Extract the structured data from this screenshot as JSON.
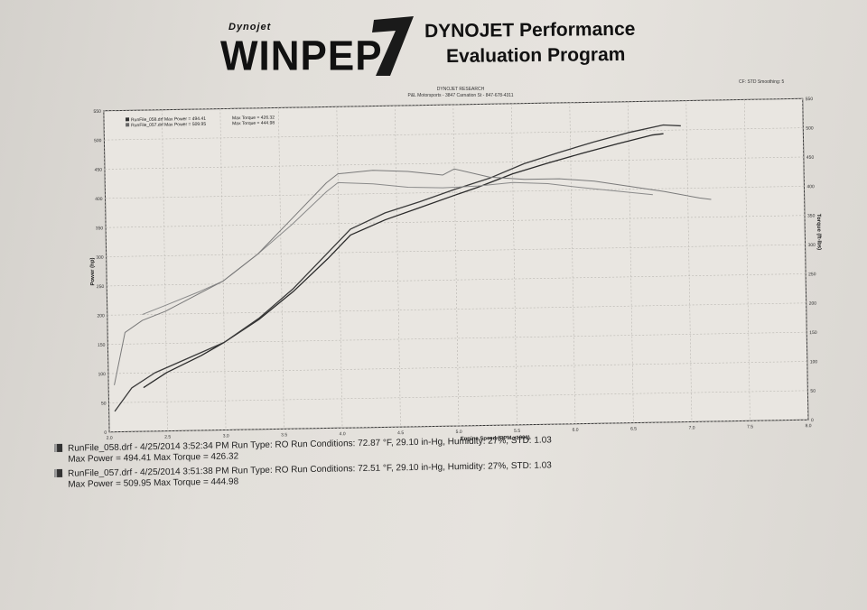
{
  "header": {
    "logo_top": "Dynojet",
    "logo_word": "WINPEP",
    "logo_number": "7",
    "title_line1": "DYNOJET Performance",
    "title_line2": "Evaluation Program",
    "cf_text": "CF: STD  Smoothing: 5",
    "research_line": "DYNOJET RESEARCH",
    "shop_line": "P&L Motorsports - 3847 Carnation St - 847-678-4311"
  },
  "inset_legend": {
    "row1": "RunFile_058.drf Max Power = 494.41",
    "row1_torque": "Max Torque = 426.32",
    "row2": "RunFile_057.drf Max Power = 509.95",
    "row2_torque": "Max Torque = 444.98"
  },
  "runs": [
    {
      "line1": "RunFile_058.drf - 4/25/2014 3:52:34 PM  Run Type: RO  Run Conditions: 72.87 °F, 29.10 in-Hg,  Humidity:  27%, STD: 1.03",
      "line2": "Max Power = 494.41  Max Torque = 426.32"
    },
    {
      "line1": "RunFile_057.drf - 4/25/2014 3:51:38 PM  Run Type: RO  Run Conditions: 72.51 °F, 29.10 in-Hg,  Humidity:  27%, STD: 1.03",
      "line2": "Max Power = 509.95  Max Torque = 444.98"
    }
  ],
  "chart_data": {
    "type": "line",
    "xlabel": "Engine Speed (RPM x1000)",
    "ylabel_left": "Power (hp)",
    "ylabel_right": "Torque (ft-lbs)",
    "xlim": [
      2.0,
      8.0
    ],
    "ylim_left": [
      0,
      550
    ],
    "ylim_right": [
      0,
      550
    ],
    "x_ticks": [
      "2.0",
      "2.5",
      "3.0",
      "3.5",
      "4.0",
      "4.5",
      "5.0",
      "5.5",
      "6.0",
      "6.5",
      "7.0",
      "7.5",
      "8.0"
    ],
    "y_ticks_left": [
      "0",
      "50",
      "100",
      "150",
      "200",
      "250",
      "300",
      "350",
      "400",
      "450",
      "500",
      "550"
    ],
    "y_ticks_right": [
      "0",
      "50",
      "100",
      "150",
      "200",
      "250",
      "300",
      "350",
      "400",
      "450",
      "500",
      "550"
    ],
    "grid": true,
    "series": [
      {
        "name": "RunFile_058.drf",
        "measure": "power",
        "color": "#2a2a2a",
        "x": [
          2.3,
          2.5,
          2.8,
          3.0,
          3.3,
          3.6,
          3.9,
          4.1,
          4.4,
          4.7,
          5.0,
          5.2,
          5.5,
          5.8,
          6.1,
          6.4,
          6.7,
          6.8
        ],
        "y": [
          75,
          100,
          128,
          150,
          188,
          235,
          290,
          330,
          355,
          375,
          395,
          408,
          430,
          447,
          463,
          478,
          492,
          494
        ]
      },
      {
        "name": "RunFile_057.drf",
        "measure": "power",
        "color": "#3a3a3a",
        "x": [
          2.05,
          2.2,
          2.4,
          2.7,
          3.0,
          3.3,
          3.6,
          3.9,
          4.1,
          4.4,
          4.7,
          5.0,
          5.3,
          5.6,
          5.9,
          6.2,
          6.5,
          6.8,
          6.95
        ],
        "y": [
          35,
          75,
          100,
          125,
          150,
          190,
          240,
          300,
          340,
          367,
          385,
          405,
          423,
          447,
          465,
          482,
          497,
          509,
          507
        ]
      },
      {
        "name": "RunFile_058.drf",
        "measure": "torque",
        "color": "#8a8a8a",
        "x": [
          2.3,
          2.5,
          2.8,
          3.0,
          3.3,
          3.6,
          3.9,
          4.0,
          4.3,
          4.6,
          4.9,
          5.2,
          5.5,
          5.8,
          6.1,
          6.4,
          6.7
        ],
        "y": [
          200,
          215,
          238,
          255,
          300,
          350,
          405,
          420,
          417,
          410,
          408,
          410,
          415,
          412,
          404,
          397,
          390
        ]
      },
      {
        "name": "RunFile_057.drf",
        "measure": "torque",
        "color": "#7a7a7a",
        "x": [
          2.05,
          2.15,
          2.3,
          2.5,
          2.8,
          3.0,
          3.3,
          3.6,
          3.9,
          4.0,
          4.3,
          4.6,
          4.9,
          5.0,
          5.3,
          5.6,
          5.9,
          6.2,
          6.5,
          6.8,
          7.1,
          7.2
        ],
        "y": [
          80,
          170,
          190,
          205,
          235,
          255,
          300,
          360,
          420,
          435,
          440,
          437,
          430,
          440,
          425,
          420,
          420,
          415,
          405,
          395,
          383,
          380
        ]
      }
    ]
  }
}
